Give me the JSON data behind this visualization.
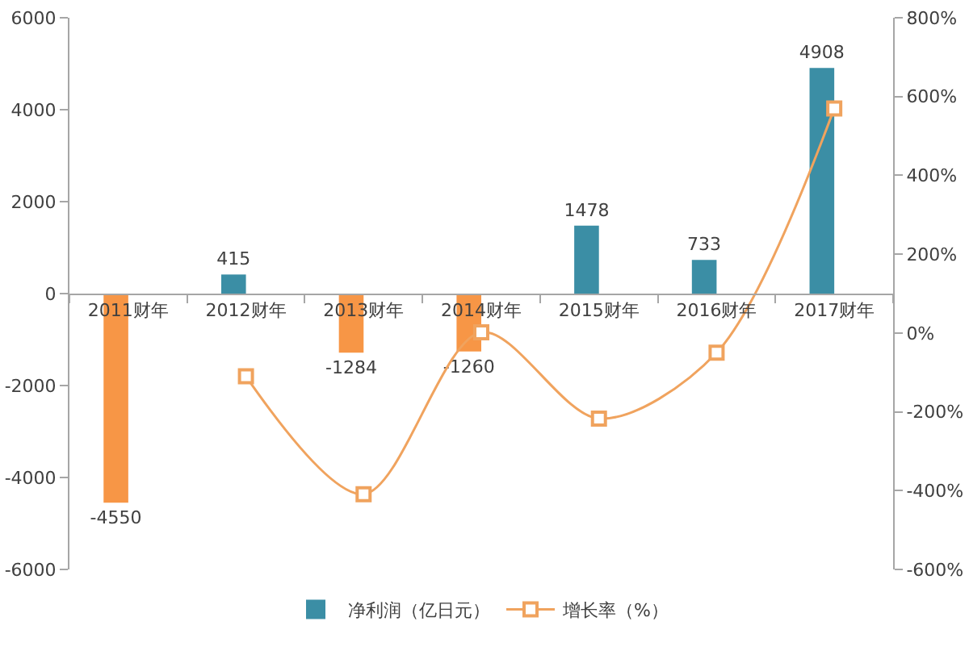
{
  "chart_data": {
    "type": "bar",
    "categories": [
      "2011财年",
      "2012财年",
      "2013财年",
      "2014财年",
      "2015财年",
      "2016财年",
      "2017财年"
    ],
    "series": [
      {
        "name": "净利润（亿日元）",
        "color": "#3b8ea5",
        "colors": [
          "#f79646",
          "#3b8ea5",
          "#f79646",
          "#f79646",
          "#3b8ea5",
          "#3b8ea5",
          "#3b8ea5"
        ],
        "values": [
          -4550,
          415,
          -1284,
          -1260,
          1478,
          733,
          4908
        ],
        "value_labels": [
          "-4550",
          "415",
          "-1284",
          "-1260",
          "1478",
          "733",
          "4908"
        ]
      },
      {
        "name": "增长率（%）",
        "type": "line",
        "axis": "y2",
        "color": "#f0a35e",
        "values": [
          null,
          -110,
          -409,
          2,
          -217,
          -50,
          570
        ]
      }
    ],
    "ylim": [
      -6000,
      6000
    ],
    "yticks": [
      -6000,
      -4000,
      -2000,
      0,
      2000,
      4000,
      6000
    ],
    "y2lim": [
      -600,
      800
    ],
    "y2ticks": [
      {
        "value": -600,
        "label": "-600%"
      },
      {
        "value": -400,
        "label": "-400%"
      },
      {
        "value": -200,
        "label": "-200%"
      },
      {
        "value": 0,
        "label": "0%"
      },
      {
        "value": 200,
        "label": "200%"
      },
      {
        "value": 400,
        "label": "400%"
      },
      {
        "value": 600,
        "label": "600%"
      },
      {
        "value": 800,
        "label": "800%"
      }
    ],
    "marker": "square",
    "line_style": "solid",
    "legend": "bottom"
  }
}
